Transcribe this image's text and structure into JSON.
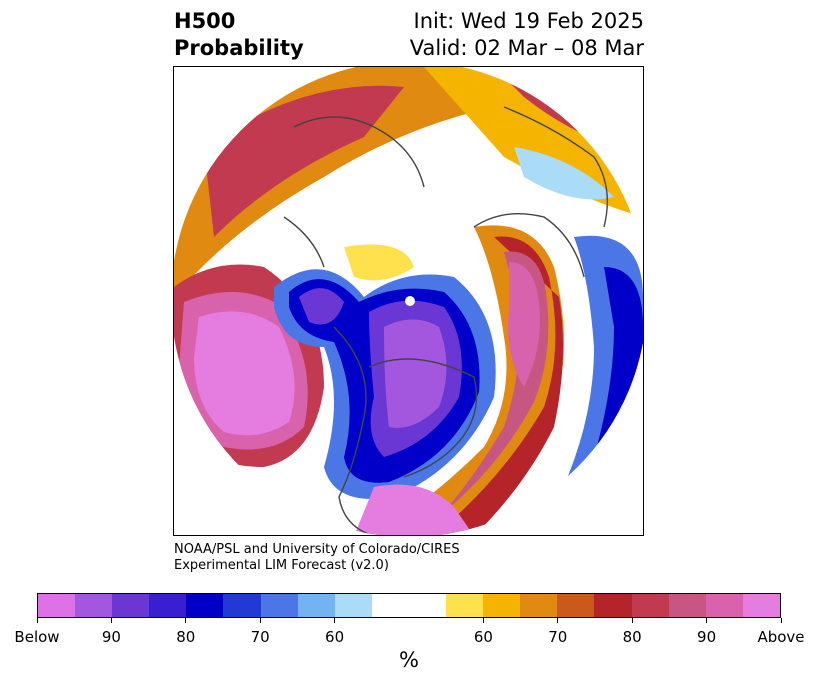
{
  "title": {
    "left_line1": "H500",
    "left_line2": "Probability",
    "right_line1": "Init: Wed 19 Feb 2025",
    "right_line2": "Valid: 02 Mar – 08 Mar"
  },
  "credit": {
    "line1": "NOAA/PSL and University of Colorado/CIRES",
    "line2": "Experimental LIM Forecast (v2.0)"
  },
  "colorbar": {
    "colors": [
      "#dd72e6",
      "#a257de",
      "#6b37d4",
      "#3a1ed2",
      "#0000c8",
      "#213ad6",
      "#4a76e6",
      "#74b3f1",
      "#aadcf8",
      "#ffffff",
      "#ffffff",
      "#ffe14d",
      "#f4b400",
      "#e08a12",
      "#c95a1a",
      "#b42428",
      "#c23a50",
      "#c85682",
      "#d862ab",
      "#e57de0"
    ],
    "labels": [
      "Below",
      "90",
      "80",
      "70",
      "60",
      "60",
      "70",
      "80",
      "90",
      "Above"
    ],
    "unit": "%"
  }
}
